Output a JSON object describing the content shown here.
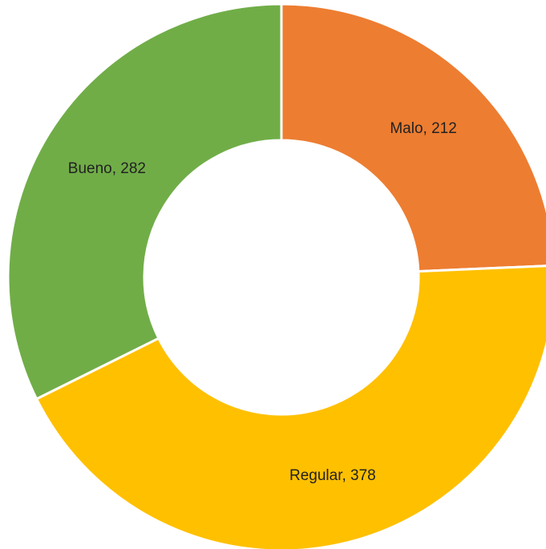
{
  "chart_data": {
    "type": "donut",
    "values": [
      212,
      378,
      282
    ],
    "value_labels": [
      "Malo, 212",
      "Regular, 378",
      "Bueno, 282"
    ],
    "colors": [
      "#ED7D31",
      "#FFC000",
      "#70AD47"
    ]
  }
}
